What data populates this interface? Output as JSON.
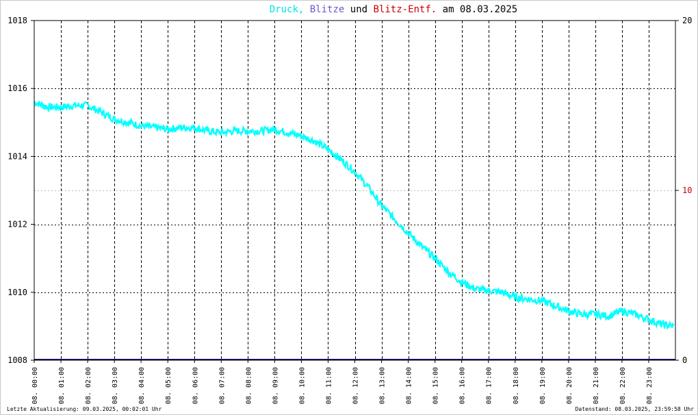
{
  "title": {
    "parts": [
      {
        "text": "Druck,",
        "color": "#00e5e5"
      },
      {
        "text": "Blitze",
        "color": "#6a5acd"
      },
      {
        "text": "und",
        "color": "#000000"
      },
      {
        "text": "Blitz-Entf.",
        "color": "#cc0000"
      },
      {
        "text": "am 08.03.2025",
        "color": "#000000"
      }
    ]
  },
  "footer": {
    "left": "Letzte Aktualisierung: 09.03.2025, 00:02:01 Uhr",
    "right": "Datenstand: 08.03.2025, 23:59:58 Uhr"
  },
  "colors": {
    "pressure": "#00ffff",
    "lightning": "#191970",
    "distance_axis": "#cc0000",
    "grid": "#000000"
  },
  "chart_data": {
    "type": "line",
    "title": "Druck, Blitze und Blitz-Entf. am 08.03.2025",
    "x_tick_labels": [
      "08. 00:00",
      "08. 01:00",
      "08. 02:00",
      "08. 03:00",
      "08. 04:00",
      "08. 05:00",
      "08. 06:00",
      "08. 07:00",
      "08. 08:00",
      "08. 09:00",
      "08. 10:00",
      "08. 11:00",
      "08. 12:00",
      "08. 13:00",
      "08. 14:00",
      "08. 15:00",
      "08. 16:00",
      "08. 17:00",
      "08. 18:00",
      "08. 19:00",
      "08. 20:00",
      "08. 21:00",
      "08. 22:00",
      "08. 23:00"
    ],
    "xlim_hours": [
      0,
      24
    ],
    "y_left": {
      "ylim": [
        1008,
        1018
      ],
      "ticks": [
        "1008",
        "1010",
        "1012",
        "1014",
        "1016",
        "1018"
      ]
    },
    "y_right": {
      "ylim": [
        0,
        20
      ],
      "ticks": [
        "0",
        "10",
        "20"
      ]
    },
    "grid": true,
    "series": [
      {
        "name": "Druck",
        "axis": "left",
        "x_hours": [
          0,
          0.5,
          1,
          1.5,
          2,
          2.5,
          3,
          3.5,
          4,
          4.5,
          5,
          5.5,
          6,
          6.5,
          7,
          7.5,
          8,
          8.5,
          9,
          9.5,
          10,
          10.5,
          11,
          11.5,
          12,
          12.5,
          13,
          13.5,
          14,
          14.5,
          15,
          15.5,
          16,
          16.5,
          17,
          17.5,
          18,
          18.5,
          19,
          19.5,
          20,
          20.5,
          21,
          21.5,
          22,
          22.5,
          23,
          23.5,
          23.95
        ],
        "values": [
          1015.6,
          1015.45,
          1015.45,
          1015.5,
          1015.5,
          1015.3,
          1015.1,
          1015.0,
          1014.9,
          1014.85,
          1014.8,
          1014.85,
          1014.85,
          1014.75,
          1014.7,
          1014.75,
          1014.75,
          1014.75,
          1014.8,
          1014.7,
          1014.6,
          1014.45,
          1014.2,
          1013.9,
          1013.55,
          1013.1,
          1012.55,
          1012.15,
          1011.75,
          1011.35,
          1011.0,
          1010.6,
          1010.3,
          1010.1,
          1010.05,
          1010.0,
          1009.85,
          1009.8,
          1009.75,
          1009.6,
          1009.45,
          1009.35,
          1009.35,
          1009.3,
          1009.45,
          1009.35,
          1009.2,
          1009.05,
          1009.0
        ]
      },
      {
        "name": "Blitze",
        "axis": "right",
        "x_hours": [
          0,
          24
        ],
        "values": [
          0,
          0
        ]
      }
    ]
  }
}
